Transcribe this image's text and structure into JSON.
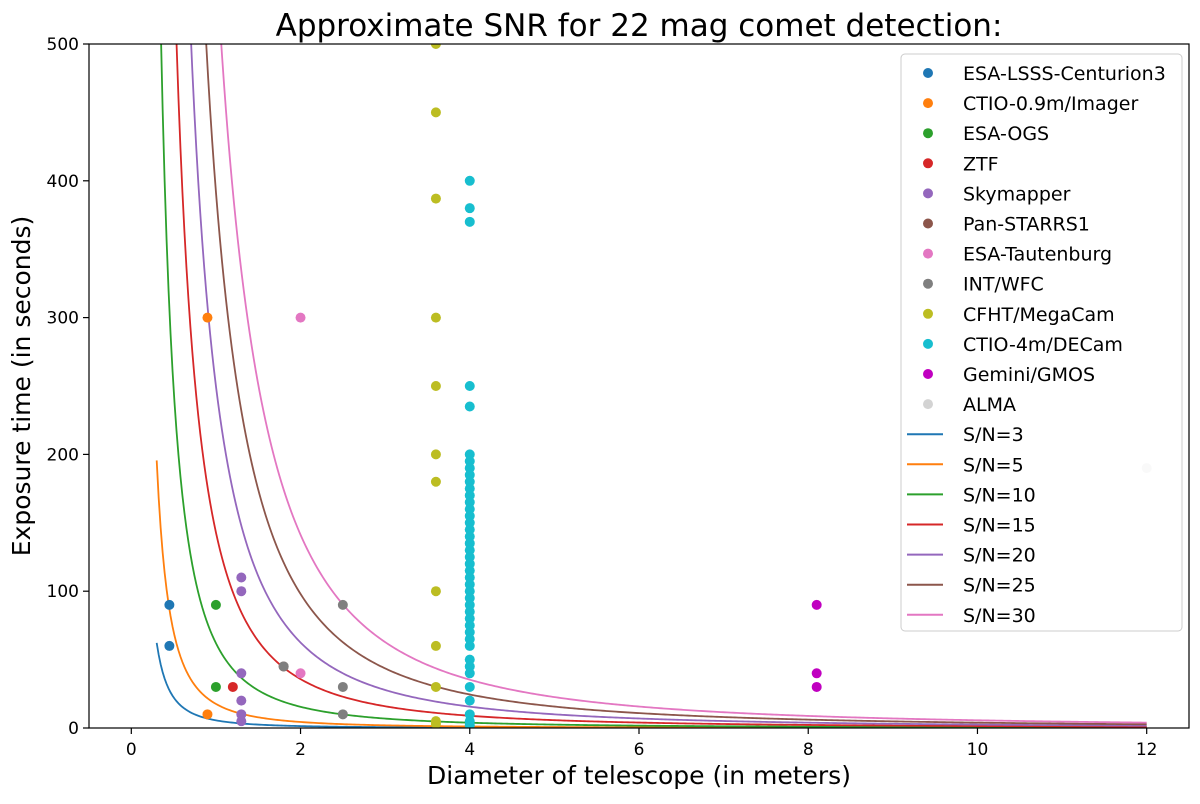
{
  "chart_data": {
    "type": "scatter",
    "title": "Approximate SNR for 22 mag comet detection:",
    "xlabel": "Diameter of telescope (in meters)",
    "ylabel": "Exposure time (in seconds)",
    "xlim": [
      -0.5,
      12.5
    ],
    "ylim": [
      0,
      500
    ],
    "xticks": [
      0,
      2,
      4,
      6,
      8,
      10,
      12
    ],
    "yticks": [
      0,
      100,
      200,
      300,
      400,
      500
    ],
    "grid": false,
    "legend_position": "top-right",
    "scatter_series": [
      {
        "name": "ESA-LSSS-Centurion3",
        "color": "#1f77b4",
        "points": [
          [
            0.45,
            90
          ],
          [
            0.45,
            60
          ]
        ]
      },
      {
        "name": "CTIO-0.9m/Imager",
        "color": "#ff7f0e",
        "points": [
          [
            0.9,
            300
          ],
          [
            0.9,
            10
          ]
        ]
      },
      {
        "name": "ESA-OGS",
        "color": "#2ca02c",
        "points": [
          [
            1.0,
            90
          ],
          [
            1.0,
            30
          ]
        ]
      },
      {
        "name": "ZTF",
        "color": "#d62728",
        "points": [
          [
            1.2,
            30
          ]
        ]
      },
      {
        "name": "Skymapper",
        "color": "#9467bd",
        "points": [
          [
            1.3,
            110
          ],
          [
            1.3,
            100
          ],
          [
            1.3,
            40
          ],
          [
            1.3,
            20
          ],
          [
            1.3,
            10
          ],
          [
            1.3,
            5
          ]
        ]
      },
      {
        "name": "Pan-STARRS1",
        "color": "#8c564b",
        "points": [
          [
            1.8,
            45
          ]
        ]
      },
      {
        "name": "ESA-Tautenburg",
        "color": "#e377c2",
        "points": [
          [
            2.0,
            300
          ],
          [
            2.0,
            40
          ]
        ]
      },
      {
        "name": "INT/WFC",
        "color": "#7f7f7f",
        "points": [
          [
            1.8,
            45
          ],
          [
            2.5,
            90
          ],
          [
            2.5,
            30
          ],
          [
            2.5,
            10
          ]
        ]
      },
      {
        "name": "CFHT/MegaCam",
        "color": "#bcbd22",
        "points": [
          [
            3.6,
            500
          ],
          [
            3.6,
            450
          ],
          [
            3.6,
            387
          ],
          [
            3.6,
            300
          ],
          [
            3.6,
            250
          ],
          [
            3.6,
            200
          ],
          [
            3.6,
            180
          ],
          [
            3.6,
            100
          ],
          [
            3.6,
            60
          ],
          [
            3.6,
            30
          ],
          [
            3.6,
            5
          ],
          [
            3.6,
            3
          ]
        ]
      },
      {
        "name": "CTIO-4m/DECam",
        "color": "#17becf",
        "points": [
          [
            4,
            400
          ],
          [
            4,
            380
          ],
          [
            4,
            370
          ],
          [
            4,
            250
          ],
          [
            4,
            235
          ],
          [
            4,
            200
          ],
          [
            4,
            195
          ],
          [
            4,
            190
          ],
          [
            4,
            185
          ],
          [
            4,
            180
          ],
          [
            4,
            175
          ],
          [
            4,
            170
          ],
          [
            4,
            165
          ],
          [
            4,
            160
          ],
          [
            4,
            155
          ],
          [
            4,
            150
          ],
          [
            4,
            145
          ],
          [
            4,
            140
          ],
          [
            4,
            135
          ],
          [
            4,
            130
          ],
          [
            4,
            125
          ],
          [
            4,
            120
          ],
          [
            4,
            115
          ],
          [
            4,
            110
          ],
          [
            4,
            105
          ],
          [
            4,
            100
          ],
          [
            4,
            95
          ],
          [
            4,
            90
          ],
          [
            4,
            85
          ],
          [
            4,
            80
          ],
          [
            4,
            75
          ],
          [
            4,
            70
          ],
          [
            4,
            65
          ],
          [
            4,
            60
          ],
          [
            4,
            50
          ],
          [
            4,
            45
          ],
          [
            4,
            40
          ],
          [
            4,
            30
          ],
          [
            4,
            20
          ],
          [
            4,
            10
          ],
          [
            4,
            5
          ],
          [
            4,
            2
          ]
        ]
      },
      {
        "name": "Gemini/GMOS",
        "color": "#c000c0",
        "points": [
          [
            8.1,
            90
          ],
          [
            8.1,
            40
          ],
          [
            8.1,
            30
          ]
        ]
      },
      {
        "name": "ALMA",
        "color": "#d3d3d3",
        "points": [
          [
            12,
            190
          ]
        ]
      }
    ],
    "curve_model": "t = k / D^2",
    "curve_series": [
      {
        "name": "S/N=3",
        "color": "#1f77b4",
        "k": 5.6
      },
      {
        "name": "S/N=5",
        "color": "#ff7f0e",
        "k": 17.6
      },
      {
        "name": "S/N=10",
        "color": "#2ca02c",
        "k": 62
      },
      {
        "name": "S/N=15",
        "color": "#d62728",
        "k": 143
      },
      {
        "name": "S/N=20",
        "color": "#9467bd",
        "k": 250
      },
      {
        "name": "S/N=25",
        "color": "#8c564b",
        "k": 392
      },
      {
        "name": "S/N=30",
        "color": "#e377c2",
        "k": 565
      }
    ],
    "curve_x_range": [
      0.3,
      12
    ]
  }
}
